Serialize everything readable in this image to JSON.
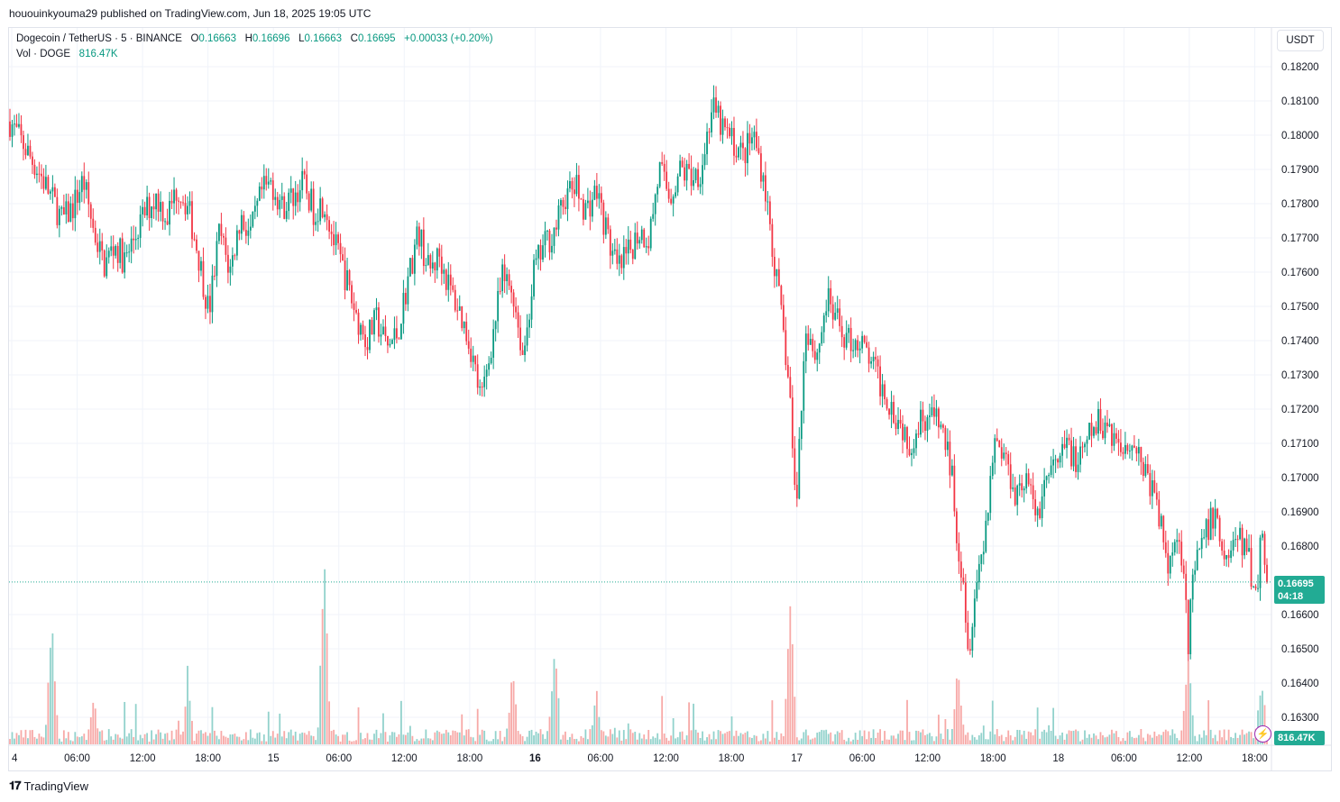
{
  "header": {
    "text": "hououinkyouma29 published on TradingView.com, Jun 18, 2025 19:05 UTC"
  },
  "legend": {
    "symbol": "Dogecoin / TetherUS · 5 · BINANCE",
    "o_label": "O",
    "o_value": "0.16663",
    "h_label": "H",
    "h_value": "0.16696",
    "l_label": "L",
    "l_value": "0.16663",
    "c_label": "C",
    "c_value": "0.16695",
    "change": "+0.00033 (+0.20%)",
    "vol_label": "Vol · DOGE",
    "vol_value": "816.47K"
  },
  "unit_button": "USDT",
  "price_badge": {
    "price": "0.16695",
    "countdown": "04:18"
  },
  "volume_badge": "816.47K",
  "footer": {
    "brand": "TradingView"
  },
  "colors": {
    "up": "#089981",
    "down": "#f23645",
    "up_vol": "#92d2cc",
    "down_vol": "#f7a9a7",
    "badge": "#22ab94",
    "grid": "#f0f3fa",
    "text": "#131722"
  },
  "chart_data": {
    "type": "candlestick",
    "interval": "5",
    "y_ticks": [
      "0.18200",
      "0.18100",
      "0.18000",
      "0.17900",
      "0.17800",
      "0.17700",
      "0.17600",
      "0.17500",
      "0.17400",
      "0.17300",
      "0.17200",
      "0.17100",
      "0.17000",
      "0.16900",
      "0.16800",
      "0.16600",
      "0.16500",
      "0.16400",
      "0.16300"
    ],
    "ylim": [
      0.1625,
      0.1827
    ],
    "x_ticks": [
      {
        "label": "4",
        "bold": false
      },
      {
        "label": "06:00",
        "bold": false
      },
      {
        "label": "12:00",
        "bold": false
      },
      {
        "label": "18:00",
        "bold": false
      },
      {
        "label": "15",
        "bold": false
      },
      {
        "label": "06:00",
        "bold": false
      },
      {
        "label": "12:00",
        "bold": false
      },
      {
        "label": "18:00",
        "bold": false
      },
      {
        "label": "16",
        "bold": true
      },
      {
        "label": "06:00",
        "bold": false
      },
      {
        "label": "12:00",
        "bold": false
      },
      {
        "label": "18:00",
        "bold": false
      },
      {
        "label": "17",
        "bold": false
      },
      {
        "label": "06:00",
        "bold": false
      },
      {
        "label": "12:00",
        "bold": false
      },
      {
        "label": "18:00",
        "bold": false
      },
      {
        "label": "18",
        "bold": false
      },
      {
        "label": "06:00",
        "bold": false
      },
      {
        "label": "12:00",
        "bold": false
      },
      {
        "label": "18:00",
        "bold": false
      }
    ],
    "last_close": 0.16695,
    "price_path": [
      [
        0,
        0.1804
      ],
      [
        3,
        0.1788
      ],
      [
        5,
        0.1775
      ],
      [
        6,
        0.1779
      ],
      [
        7,
        0.1787
      ],
      [
        8,
        0.1772
      ],
      [
        9,
        0.1762
      ],
      [
        10,
        0.1768
      ],
      [
        11,
        0.1763
      ],
      [
        12,
        0.1771
      ],
      [
        13,
        0.1778
      ],
      [
        14,
        0.1782
      ],
      [
        15,
        0.1776
      ],
      [
        16,
        0.1785
      ],
      [
        17,
        0.1779
      ],
      [
        18,
        0.1765
      ],
      [
        19,
        0.1748
      ],
      [
        20,
        0.1772
      ],
      [
        21,
        0.176
      ],
      [
        22,
        0.1776
      ],
      [
        23,
        0.1771
      ],
      [
        24,
        0.1783
      ],
      [
        25,
        0.1786
      ],
      [
        26,
        0.1779
      ],
      [
        27,
        0.1782
      ],
      [
        28,
        0.1786
      ],
      [
        29,
        0.1778
      ],
      [
        30,
        0.1781
      ],
      [
        31,
        0.1768
      ],
      [
        32,
        0.1759
      ],
      [
        33,
        0.1748
      ],
      [
        34,
        0.174
      ],
      [
        35,
        0.1746
      ],
      [
        36,
        0.1738
      ],
      [
        37,
        0.1742
      ],
      [
        38,
        0.1758
      ],
      [
        39,
        0.1772
      ],
      [
        40,
        0.176
      ],
      [
        41,
        0.1765
      ],
      [
        42,
        0.1755
      ],
      [
        43,
        0.1748
      ],
      [
        44,
        0.1738
      ],
      [
        45,
        0.1722
      ],
      [
        46,
        0.174
      ],
      [
        47,
        0.1758
      ],
      [
        48,
        0.1755
      ],
      [
        49,
        0.1735
      ],
      [
        50,
        0.176
      ],
      [
        51,
        0.1768
      ],
      [
        52,
        0.1772
      ],
      [
        53,
        0.1782
      ],
      [
        54,
        0.1785
      ],
      [
        55,
        0.1778
      ],
      [
        56,
        0.1784
      ],
      [
        57,
        0.1771
      ],
      [
        58,
        0.176
      ],
      [
        59,
        0.1765
      ],
      [
        60,
        0.1772
      ],
      [
        61,
        0.177
      ],
      [
        62,
        0.179
      ],
      [
        63,
        0.1782
      ],
      [
        64,
        0.179
      ],
      [
        65,
        0.1788
      ],
      [
        66,
        0.179
      ],
      [
        67,
        0.1808
      ],
      [
        68,
        0.1802
      ],
      [
        69,
        0.1798
      ],
      [
        70,
        0.1794
      ],
      [
        71,
        0.18
      ],
      [
        72,
        0.1787
      ],
      [
        73,
        0.1762
      ],
      [
        74,
        0.1738
      ],
      [
        74.5,
        0.1722
      ],
      [
        75,
        0.169
      ],
      [
        75.5,
        0.1718
      ],
      [
        76,
        0.1745
      ],
      [
        77,
        0.1735
      ],
      [
        78,
        0.1752
      ],
      [
        79,
        0.1745
      ],
      [
        80,
        0.174
      ],
      [
        81,
        0.174
      ],
      [
        82,
        0.1735
      ],
      [
        83,
        0.1728
      ],
      [
        84,
        0.1722
      ],
      [
        85,
        0.1716
      ],
      [
        86,
        0.171
      ],
      [
        87,
        0.1718
      ],
      [
        88,
        0.1718
      ],
      [
        89,
        0.1714
      ],
      [
        90,
        0.17
      ],
      [
        90.5,
        0.168
      ],
      [
        91,
        0.1672
      ],
      [
        91.5,
        0.1648
      ],
      [
        92,
        0.1665
      ],
      [
        93,
        0.1682
      ],
      [
        94,
        0.1712
      ],
      [
        95,
        0.1706
      ],
      [
        96,
        0.1696
      ],
      [
        97,
        0.17
      ],
      [
        98,
        0.1688
      ],
      [
        99,
        0.1701
      ],
      [
        100,
        0.1703
      ],
      [
        101,
        0.171
      ],
      [
        102,
        0.1703
      ],
      [
        103,
        0.1712
      ],
      [
        104,
        0.1716
      ],
      [
        105,
        0.1715
      ],
      [
        106,
        0.1708
      ],
      [
        107,
        0.1712
      ],
      [
        108,
        0.1705
      ],
      [
        109,
        0.1697
      ],
      [
        110,
        0.1685
      ],
      [
        110.5,
        0.1672
      ],
      [
        111,
        0.1683
      ],
      [
        112,
        0.1678
      ],
      [
        112.5,
        0.1652
      ],
      [
        113,
        0.1672
      ],
      [
        114,
        0.1682
      ],
      [
        115,
        0.169
      ],
      [
        116,
        0.1676
      ],
      [
        117,
        0.1682
      ],
      [
        118,
        0.168
      ],
      [
        119,
        0.1665
      ],
      [
        119.5,
        0.1686
      ],
      [
        120,
        0.16695
      ]
    ],
    "volume_spikes": [
      [
        4,
        0.62
      ],
      [
        8,
        0.18
      ],
      [
        17,
        0.24
      ],
      [
        30,
        1.0
      ],
      [
        48,
        0.37
      ],
      [
        52,
        0.48
      ],
      [
        56,
        0.23
      ],
      [
        74.5,
        0.74
      ],
      [
        90.5,
        0.38
      ],
      [
        112.5,
        0.4
      ],
      [
        119.5,
        0.3
      ]
    ]
  }
}
